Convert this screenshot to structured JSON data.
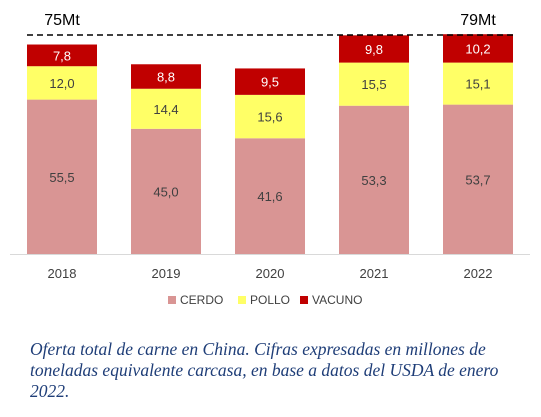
{
  "chart_data": {
    "type": "bar",
    "stacked": true,
    "categories": [
      "2018",
      "2019",
      "2020",
      "2021",
      "2022"
    ],
    "series": [
      {
        "name": "CERDO",
        "values": [
          55.5,
          45.0,
          41.6,
          53.3,
          53.7
        ],
        "labels": [
          "55,5",
          "45,0",
          "41,6",
          "53,3",
          "53,7"
        ],
        "color": "#d99594"
      },
      {
        "name": "POLLO",
        "values": [
          12.0,
          14.4,
          15.6,
          15.5,
          15.1
        ],
        "labels": [
          "12,0",
          "14,4",
          "15,6",
          "15,5",
          "15,1"
        ],
        "color": "#ffff66"
      },
      {
        "name": "VACUNO",
        "values": [
          7.8,
          8.8,
          9.5,
          9.8,
          10.2
        ],
        "labels": [
          "7,8",
          "8,8",
          "9,5",
          "9,8",
          "10,2"
        ],
        "color": "#c00000"
      }
    ],
    "annotations": [
      {
        "text": "75Mt",
        "category": "2018"
      },
      {
        "text": "79Mt",
        "category": "2022"
      }
    ],
    "ylim": [
      0,
      82
    ],
    "legend_position": "bottom",
    "grid": false
  },
  "caption": "Oferta total de carne en China. Cifras expresadas en millones de toneladas equivalente carcasa, en base a datos del USDA de enero 2022."
}
